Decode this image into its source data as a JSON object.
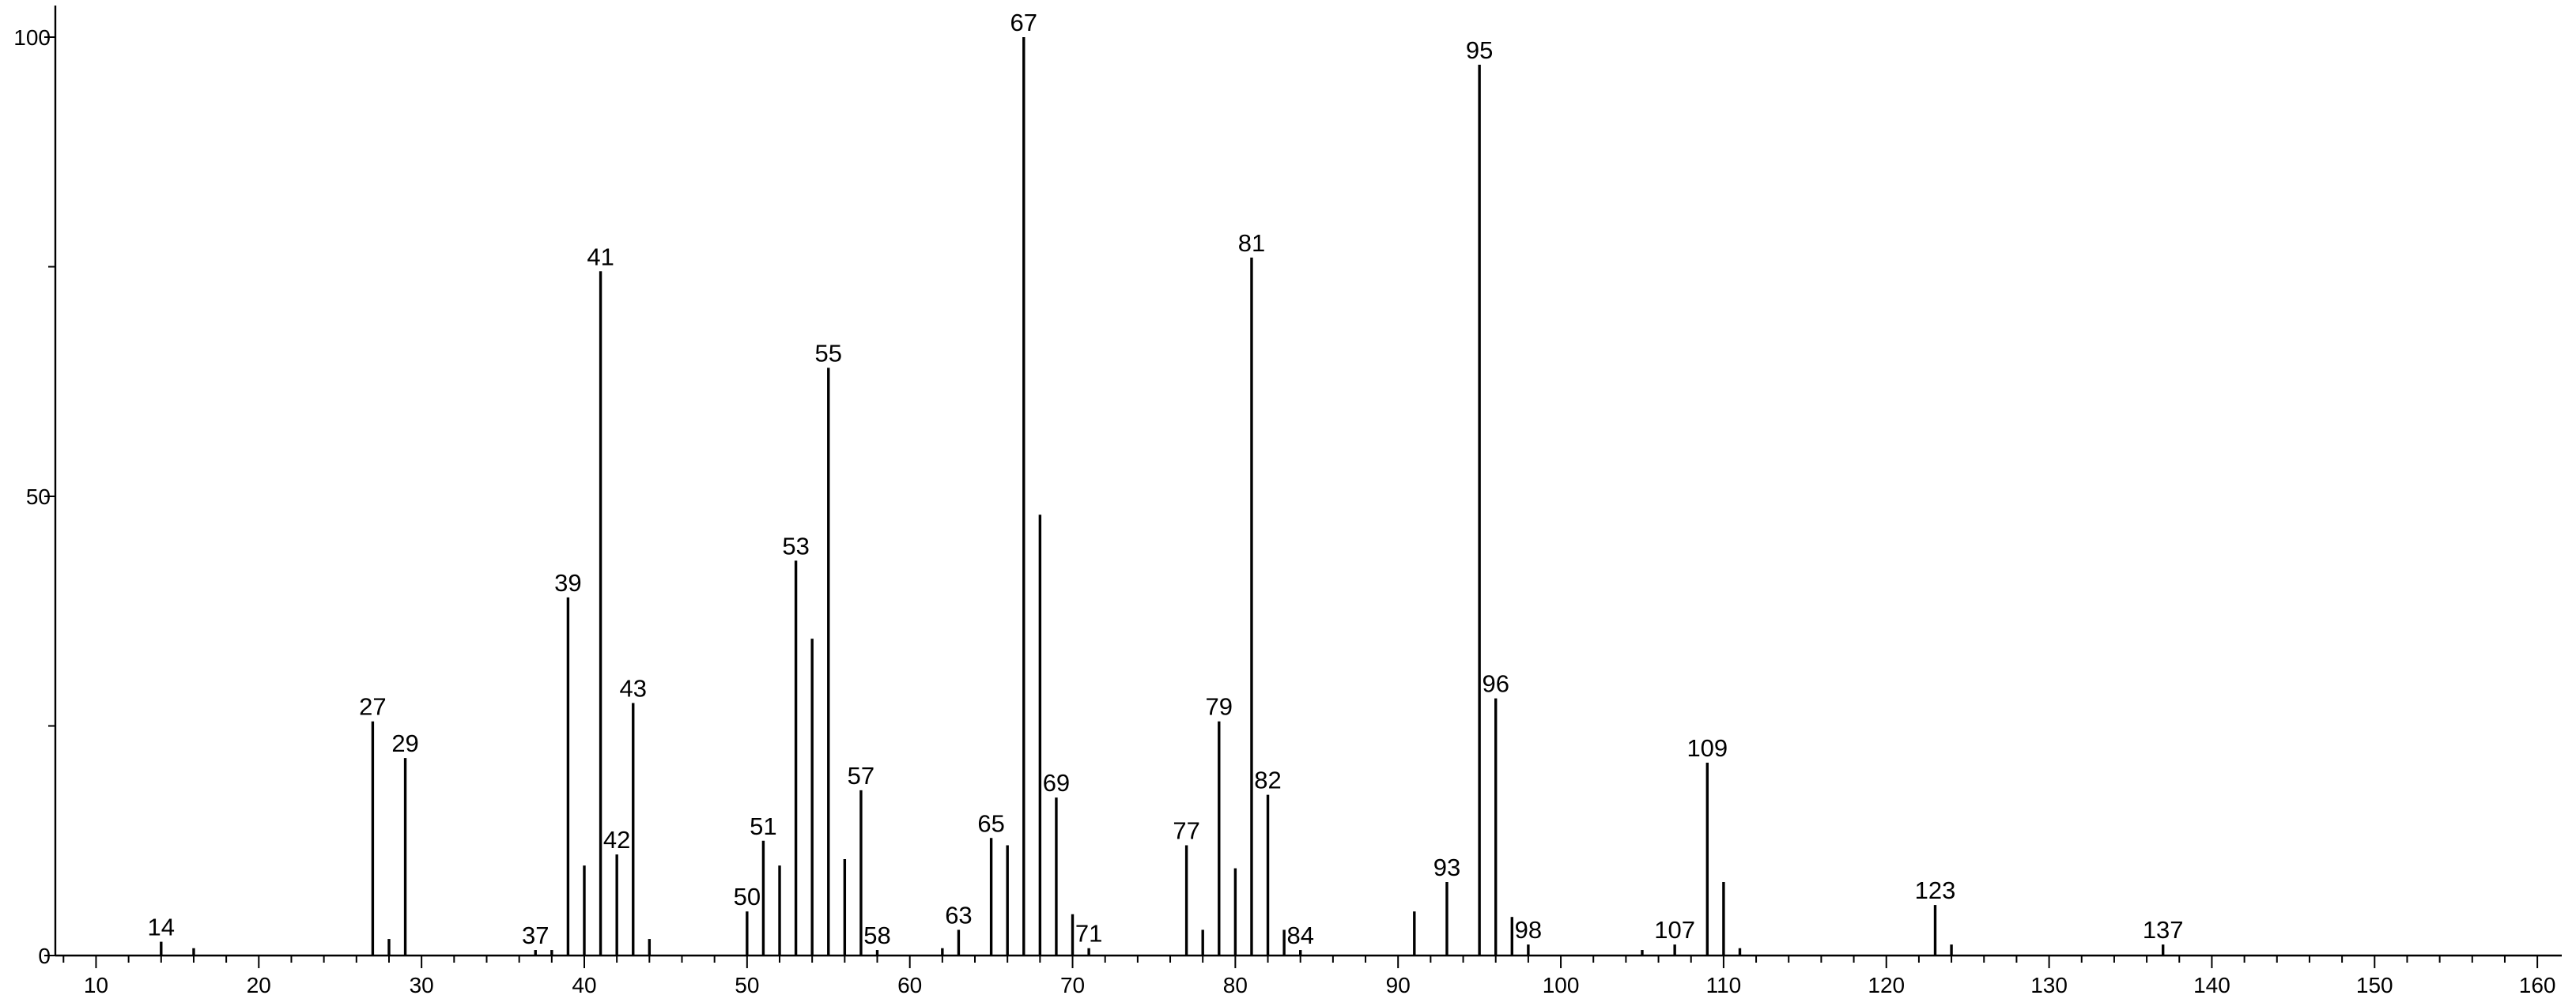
{
  "chart_data": {
    "type": "bar",
    "title": "",
    "xlabel": "",
    "ylabel": "",
    "xlim": [
      7.5,
      161.5
    ],
    "ylim": [
      0,
      100
    ],
    "x_ticks": [
      10,
      20,
      30,
      40,
      50,
      60,
      70,
      80,
      90,
      100,
      110,
      120,
      130,
      140,
      150,
      160
    ],
    "y_ticks": [
      0,
      50,
      100
    ],
    "grid": false,
    "legend": "none",
    "series": [
      {
        "peaks": [
          {
            "x": 14,
            "y": 1.5,
            "label": "14"
          },
          {
            "x": 16,
            "y": 0.8
          },
          {
            "x": 27,
            "y": 25.5,
            "label": "27"
          },
          {
            "x": 28,
            "y": 1.8
          },
          {
            "x": 29,
            "y": 21.5,
            "label": "29"
          },
          {
            "x": 37,
            "y": 0.6,
            "label": "37"
          },
          {
            "x": 38,
            "y": 0.6
          },
          {
            "x": 39,
            "y": 39,
            "label": "39"
          },
          {
            "x": 40,
            "y": 9.8
          },
          {
            "x": 41,
            "y": 74.5,
            "label": "41"
          },
          {
            "x": 42,
            "y": 11,
            "label": "42"
          },
          {
            "x": 43,
            "y": 27.5,
            "label": "43"
          },
          {
            "x": 44,
            "y": 1.8
          },
          {
            "x": 50,
            "y": 4.8,
            "label": "50"
          },
          {
            "x": 51,
            "y": 12.5,
            "label": "51"
          },
          {
            "x": 52,
            "y": 9.8
          },
          {
            "x": 53,
            "y": 43,
            "label": "53"
          },
          {
            "x": 54,
            "y": 34.5
          },
          {
            "x": 55,
            "y": 64,
            "label": "55"
          },
          {
            "x": 56,
            "y": 10.5
          },
          {
            "x": 57,
            "y": 18,
            "label": "57"
          },
          {
            "x": 58,
            "y": 0.6,
            "label": "58"
          },
          {
            "x": 62,
            "y": 0.8
          },
          {
            "x": 63,
            "y": 2.8,
            "label": "63"
          },
          {
            "x": 65,
            "y": 12.8,
            "label": "65"
          },
          {
            "x": 66,
            "y": 12
          },
          {
            "x": 67,
            "y": 100,
            "label": "67"
          },
          {
            "x": 68,
            "y": 48
          },
          {
            "x": 69,
            "y": 17.2,
            "label": "69"
          },
          {
            "x": 70,
            "y": 4.5
          },
          {
            "x": 71,
            "y": 0.8,
            "label": "71"
          },
          {
            "x": 77,
            "y": 12,
            "label": "77"
          },
          {
            "x": 78,
            "y": 2.8
          },
          {
            "x": 79,
            "y": 25.5,
            "label": "79"
          },
          {
            "x": 80,
            "y": 9.5
          },
          {
            "x": 81,
            "y": 76,
            "label": "81"
          },
          {
            "x": 82,
            "y": 17.5,
            "label": "82"
          },
          {
            "x": 83,
            "y": 2.8
          },
          {
            "x": 84,
            "y": 0.6,
            "label": "84"
          },
          {
            "x": 91,
            "y": 4.8
          },
          {
            "x": 93,
            "y": 8,
            "label": "93"
          },
          {
            "x": 95,
            "y": 97,
            "label": "95"
          },
          {
            "x": 96,
            "y": 28,
            "label": "96"
          },
          {
            "x": 97,
            "y": 4.2
          },
          {
            "x": 98,
            "y": 1.2,
            "label": "98"
          },
          {
            "x": 105,
            "y": 0.6
          },
          {
            "x": 107,
            "y": 1.2,
            "label": "107"
          },
          {
            "x": 109,
            "y": 21,
            "label": "109"
          },
          {
            "x": 110,
            "y": 8
          },
          {
            "x": 111,
            "y": 0.8
          },
          {
            "x": 123,
            "y": 5.5,
            "label": "123"
          },
          {
            "x": 124,
            "y": 1.2
          },
          {
            "x": 137,
            "y": 1.2,
            "label": "137"
          }
        ]
      }
    ]
  }
}
